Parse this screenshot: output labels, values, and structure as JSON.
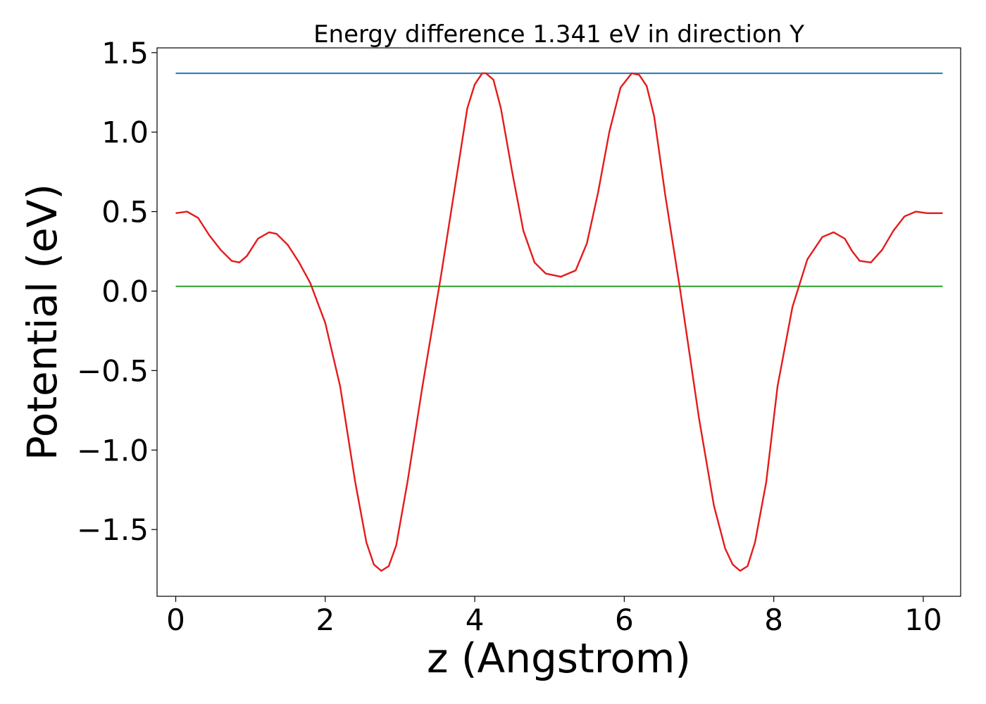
{
  "chart_data": {
    "type": "line",
    "title": "Energy difference 1.341 eV in direction Y",
    "xlabel": "z (Angstrom)",
    "ylabel": "Potential (eV)",
    "xlim": [
      -0.25,
      10.5
    ],
    "ylim": [
      -1.92,
      1.53
    ],
    "grid": false,
    "xticks": [
      0,
      2,
      4,
      6,
      8,
      10
    ],
    "xtick_labels": [
      "0",
      "2",
      "4",
      "6",
      "8",
      "10"
    ],
    "yticks": [
      -1.5,
      -1.0,
      -0.5,
      0.0,
      0.5,
      1.0,
      1.5
    ],
    "ytick_labels": [
      "−1.5",
      "−1.0",
      "−0.5",
      "0.0",
      "0.5",
      "1.0",
      "1.5"
    ],
    "series": [
      {
        "color": "#1f77b4",
        "x": [
          0,
          10.26
        ],
        "y": [
          1.37,
          1.37
        ]
      },
      {
        "color": "#2ca02c",
        "x": [
          0,
          10.26
        ],
        "y": [
          0.03,
          0.03
        ]
      },
      {
        "color": "#e41a1c",
        "x": [
          0.0,
          0.15,
          0.3,
          0.45,
          0.6,
          0.75,
          0.85,
          0.95,
          1.1,
          1.25,
          1.35,
          1.5,
          1.65,
          1.8,
          2.0,
          2.2,
          2.4,
          2.55,
          2.65,
          2.75,
          2.85,
          2.95,
          3.1,
          3.3,
          3.55,
          3.75,
          3.9,
          4.0,
          4.1,
          4.15,
          4.25,
          4.35,
          4.5,
          4.65,
          4.8,
          4.95,
          5.15,
          5.35,
          5.5,
          5.65,
          5.8,
          5.95,
          6.1,
          6.2,
          6.3,
          6.4,
          6.55,
          6.75,
          7.0,
          7.2,
          7.35,
          7.45,
          7.55,
          7.65,
          7.75,
          7.9,
          8.05,
          8.25,
          8.45,
          8.65,
          8.8,
          8.95,
          9.05,
          9.15,
          9.3,
          9.45,
          9.6,
          9.75,
          9.9,
          10.05,
          10.15,
          10.26
        ],
        "y": [
          0.49,
          0.5,
          0.46,
          0.35,
          0.26,
          0.19,
          0.18,
          0.22,
          0.33,
          0.37,
          0.36,
          0.29,
          0.18,
          0.05,
          -0.2,
          -0.6,
          -1.2,
          -1.58,
          -1.72,
          -1.76,
          -1.73,
          -1.6,
          -1.2,
          -0.6,
          0.1,
          0.7,
          1.15,
          1.3,
          1.37,
          1.37,
          1.33,
          1.15,
          0.75,
          0.38,
          0.18,
          0.11,
          0.09,
          0.13,
          0.3,
          0.62,
          1.0,
          1.28,
          1.37,
          1.36,
          1.29,
          1.1,
          0.6,
          0.0,
          -0.8,
          -1.35,
          -1.62,
          -1.72,
          -1.76,
          -1.73,
          -1.58,
          -1.2,
          -0.6,
          -0.1,
          0.2,
          0.34,
          0.37,
          0.33,
          0.25,
          0.19,
          0.18,
          0.26,
          0.38,
          0.47,
          0.5,
          0.49,
          0.49,
          0.49
        ]
      }
    ]
  }
}
